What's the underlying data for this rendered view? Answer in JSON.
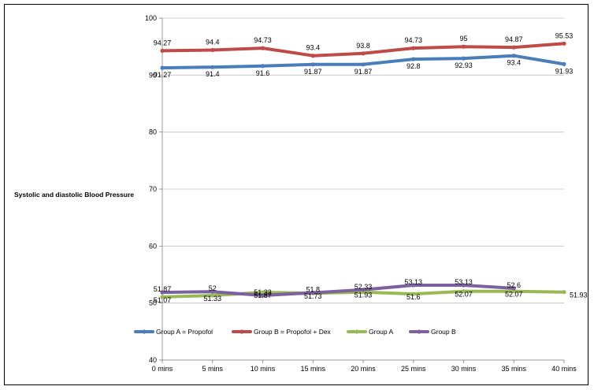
{
  "chart_data": {
    "type": "line",
    "title": "",
    "xlabel": "",
    "ylabel": "Systolic and diastolic Blood Pressure",
    "ylim": [
      40,
      100
    ],
    "yticks": [
      "40",
      "50",
      "60",
      "70",
      "80",
      "90",
      "100"
    ],
    "categories": [
      "0 mins",
      "5 mins",
      "10 mins",
      "15 mins",
      "20 mins",
      "25 mins",
      "30 mins",
      "35 mins",
      "40 mins"
    ],
    "grid": true,
    "legend": "bottom-left",
    "series": [
      {
        "name": "Group A = Propofol",
        "color": "#4a7ebb",
        "values": [
          91.27,
          91.4,
          91.6,
          91.87,
          91.87,
          92.8,
          92.93,
          93.4,
          91.93
        ],
        "labels": [
          "91.27",
          "91.4",
          "91.6",
          "91.87",
          "91.87",
          "92.8",
          "92.93",
          "93.4",
          "91.93"
        ]
      },
      {
        "name": "Group B = Propofol + Dex",
        "color": "#be4b48",
        "values": [
          94.27,
          94.4,
          94.73,
          93.4,
          93.8,
          94.73,
          95,
          94.87,
          95.53
        ],
        "labels": [
          "94.27",
          "94.4",
          "94.73",
          "93.4",
          "93.8",
          "94.73",
          "95",
          "94.87",
          "95.53"
        ]
      },
      {
        "name": "Group A",
        "color": "#98b954",
        "values": [
          51.07,
          51.33,
          51.87,
          51.73,
          51.93,
          51.6,
          52.07,
          52.07,
          51.93
        ],
        "labels": [
          "51.07",
          "51.33",
          "51.87",
          "51.73",
          "51.93",
          "51.6",
          "52.07",
          "52.07",
          "51.93"
        ]
      },
      {
        "name": "Group B",
        "color": "#7d60a0",
        "values": [
          51.87,
          52,
          51.33,
          51.8,
          52.33,
          53.13,
          53.13,
          52.6,
          null
        ],
        "labels": [
          "51.87",
          "52",
          "51.33",
          "51.8",
          "52.33",
          "53.13",
          "53.13",
          "52.6",
          null
        ]
      }
    ]
  }
}
